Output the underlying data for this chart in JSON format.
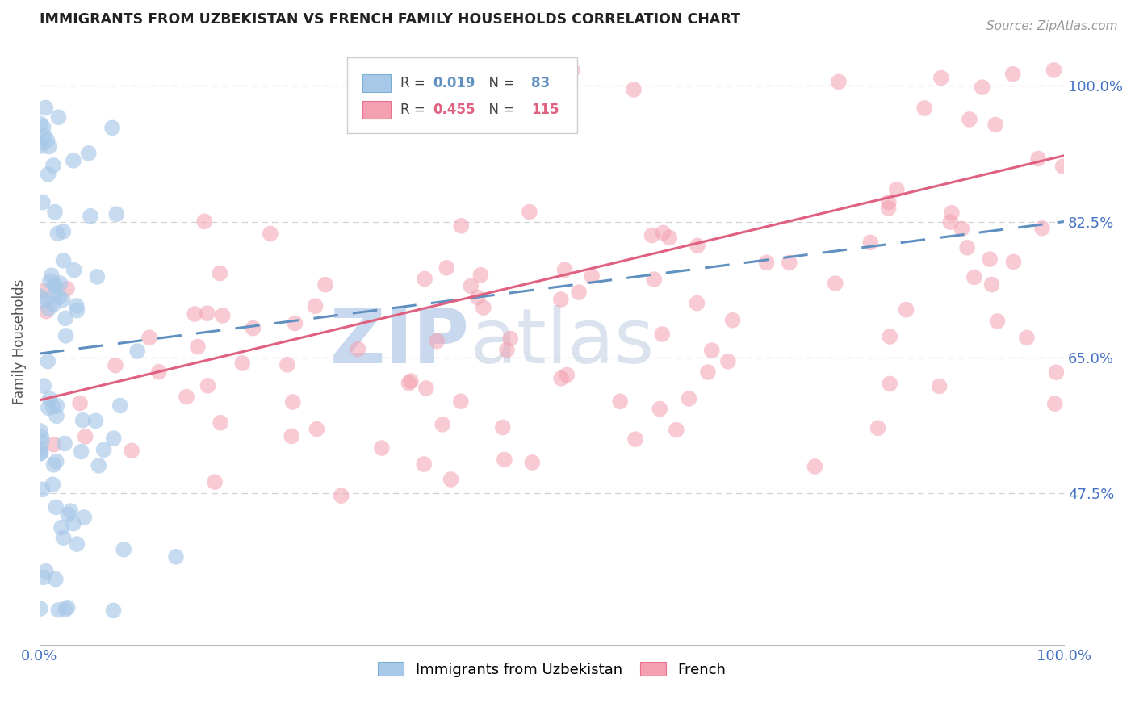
{
  "title": "IMMIGRANTS FROM UZBEKISTAN VS FRENCH FAMILY HOUSEHOLDS CORRELATION CHART",
  "source": "Source: ZipAtlas.com",
  "ylabel": "Family Households",
  "ytick_labels": [
    "47.5%",
    "65.0%",
    "82.5%",
    "100.0%"
  ],
  "ytick_values": [
    0.475,
    0.65,
    0.825,
    1.0
  ],
  "legend_label1": "Immigrants from Uzbekistan",
  "legend_label2": "French",
  "blue_color": "#a8c8e8",
  "pink_color": "#f4a0b0",
  "blue_edge_color": "#7aafd0",
  "pink_edge_color": "#e87090",
  "blue_line_color": "#6090c0",
  "pink_line_color": "#e06080",
  "watermark_zip_color": "#c8d8ee",
  "watermark_atlas_color": "#7090c0",
  "title_color": "#222222",
  "axis_label_color": "#4472c4",
  "grid_color": "#c8c8c8",
  "background_color": "#ffffff",
  "seed": 12,
  "blue_N": 83,
  "pink_N": 115,
  "blue_R": 0.019,
  "pink_R": 0.455,
  "xmin": 0.0,
  "xmax": 1.0,
  "ymin": 0.28,
  "ymax": 1.06,
  "blue_line_x": [
    0.0,
    1.0
  ],
  "blue_line_y": [
    0.655,
    0.825
  ],
  "pink_line_x": [
    0.0,
    1.0
  ],
  "pink_line_y": [
    0.595,
    0.91
  ]
}
